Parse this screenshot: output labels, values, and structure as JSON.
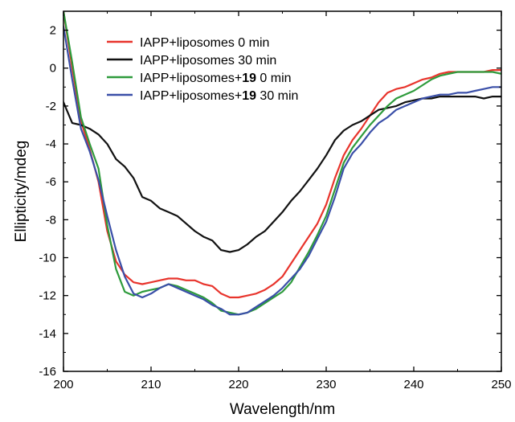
{
  "chart_data": {
    "type": "line",
    "xlabel": "Wavelength/nm",
    "ylabel": "Ellipticity/mdeg",
    "xlim": [
      200,
      250
    ],
    "ylim": [
      -16,
      3
    ],
    "x_ticks": [
      "200",
      "210",
      "220",
      "230",
      "240",
      "250"
    ],
    "y_ticks": [
      "2",
      "0",
      "-2",
      "-4",
      "-6",
      "-8",
      "-10",
      "-12",
      "-14",
      "-16"
    ],
    "legend_position": "top-left",
    "series": [
      {
        "name": "IAPP+liposomes 0 min",
        "legend_prefix": "IAPP+liposomes 0 min",
        "legend_bold": "",
        "legend_suffix": "",
        "color": "#e8342c",
        "x": [
          200,
          201,
          202,
          203,
          204,
          205,
          206,
          207,
          208,
          209,
          210,
          211,
          212,
          213,
          214,
          215,
          216,
          217,
          218,
          219,
          220,
          221,
          222,
          223,
          224,
          225,
          226,
          227,
          228,
          229,
          230,
          231,
          232,
          233,
          234,
          235,
          236,
          237,
          238,
          239,
          240,
          241,
          242,
          243,
          244,
          245,
          246,
          247,
          248,
          249,
          250
        ],
        "y": [
          3.0,
          0.0,
          -2.8,
          -4.3,
          -6.0,
          -8.6,
          -10.2,
          -10.9,
          -11.3,
          -11.4,
          -11.3,
          -11.2,
          -11.1,
          -11.1,
          -11.2,
          -11.2,
          -11.4,
          -11.5,
          -11.9,
          -12.1,
          -12.1,
          -12.0,
          -11.9,
          -11.7,
          -11.4,
          -11.0,
          -10.3,
          -9.6,
          -8.9,
          -8.2,
          -7.2,
          -5.8,
          -4.6,
          -3.8,
          -3.2,
          -2.5,
          -1.8,
          -1.3,
          -1.1,
          -1.0,
          -0.8,
          -0.6,
          -0.5,
          -0.3,
          -0.2,
          -0.2,
          -0.2,
          -0.2,
          -0.2,
          -0.1,
          -0.1
        ]
      },
      {
        "name": "IAPP+liposomes 30 min",
        "legend_prefix": "IAPP+liposomes 30 min",
        "legend_bold": "",
        "legend_suffix": "",
        "color": "#111111",
        "x": [
          200,
          201,
          202,
          203,
          204,
          205,
          206,
          207,
          208,
          209,
          210,
          211,
          212,
          213,
          214,
          215,
          216,
          217,
          218,
          219,
          220,
          221,
          222,
          223,
          224,
          225,
          226,
          227,
          228,
          229,
          230,
          231,
          232,
          233,
          234,
          235,
          236,
          237,
          238,
          239,
          240,
          241,
          242,
          243,
          244,
          245,
          246,
          247,
          248,
          249,
          250
        ],
        "y": [
          -1.8,
          -2.9,
          -3.0,
          -3.2,
          -3.5,
          -4.0,
          -4.8,
          -5.2,
          -5.8,
          -6.8,
          -7.0,
          -7.4,
          -7.6,
          -7.8,
          -8.2,
          -8.6,
          -8.9,
          -9.1,
          -9.6,
          -9.7,
          -9.6,
          -9.3,
          -8.9,
          -8.6,
          -8.1,
          -7.6,
          -7.0,
          -6.5,
          -5.9,
          -5.3,
          -4.6,
          -3.8,
          -3.3,
          -3.0,
          -2.8,
          -2.5,
          -2.2,
          -2.1,
          -2.0,
          -1.8,
          -1.7,
          -1.6,
          -1.6,
          -1.5,
          -1.5,
          -1.5,
          -1.5,
          -1.5,
          -1.6,
          -1.5,
          -1.5
        ]
      },
      {
        "name": "IAPP+liposomes+19 0 min",
        "legend_prefix": "IAPP+liposomes+",
        "legend_bold": "19",
        "legend_suffix": " 0 min",
        "color": "#2e9b3c",
        "x": [
          200,
          201,
          202,
          203,
          204,
          205,
          206,
          207,
          208,
          209,
          210,
          211,
          212,
          213,
          214,
          215,
          216,
          217,
          218,
          219,
          220,
          221,
          222,
          223,
          224,
          225,
          226,
          227,
          228,
          229,
          230,
          231,
          232,
          233,
          234,
          235,
          236,
          237,
          238,
          239,
          240,
          241,
          242,
          243,
          244,
          245,
          246,
          247,
          248,
          249,
          250
        ],
        "y": [
          3.0,
          0.3,
          -2.6,
          -4.0,
          -5.3,
          -8.3,
          -10.6,
          -11.8,
          -12.0,
          -11.8,
          -11.7,
          -11.6,
          -11.4,
          -11.5,
          -11.7,
          -11.9,
          -12.1,
          -12.4,
          -12.8,
          -12.9,
          -13.0,
          -12.9,
          -12.7,
          -12.4,
          -12.1,
          -11.8,
          -11.3,
          -10.5,
          -9.7,
          -8.8,
          -7.8,
          -6.4,
          -5.0,
          -4.2,
          -3.6,
          -3.0,
          -2.5,
          -2.0,
          -1.6,
          -1.4,
          -1.2,
          -0.9,
          -0.6,
          -0.4,
          -0.3,
          -0.2,
          -0.2,
          -0.2,
          -0.2,
          -0.2,
          -0.3
        ]
      },
      {
        "name": "IAPP+liposomes+19 30 min",
        "legend_prefix": "IAPP+liposomes+",
        "legend_bold": "19",
        "legend_suffix": " 30 min",
        "color": "#3a4fa8",
        "x": [
          200,
          201,
          202,
          203,
          204,
          205,
          206,
          207,
          208,
          209,
          210,
          211,
          212,
          213,
          214,
          215,
          216,
          217,
          218,
          219,
          220,
          221,
          222,
          223,
          224,
          225,
          226,
          227,
          228,
          229,
          230,
          231,
          232,
          233,
          234,
          235,
          236,
          237,
          238,
          239,
          240,
          241,
          242,
          243,
          244,
          245,
          246,
          247,
          248,
          249,
          250
        ],
        "y": [
          2.2,
          -0.6,
          -3.2,
          -4.4,
          -5.9,
          -7.8,
          -9.6,
          -11.0,
          -11.9,
          -12.1,
          -11.9,
          -11.6,
          -11.4,
          -11.6,
          -11.8,
          -12.0,
          -12.2,
          -12.5,
          -12.7,
          -13.0,
          -13.0,
          -12.9,
          -12.6,
          -12.3,
          -12.0,
          -11.6,
          -11.1,
          -10.6,
          -9.9,
          -9.0,
          -8.1,
          -6.8,
          -5.3,
          -4.5,
          -4.0,
          -3.4,
          -2.9,
          -2.6,
          -2.2,
          -2.0,
          -1.8,
          -1.6,
          -1.5,
          -1.4,
          -1.4,
          -1.3,
          -1.3,
          -1.2,
          -1.1,
          -1.0,
          -1.0
        ]
      }
    ]
  }
}
